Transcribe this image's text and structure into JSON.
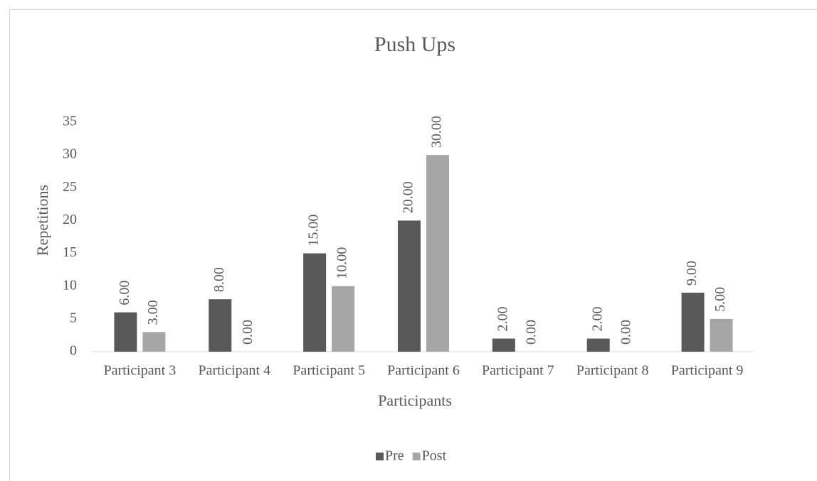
{
  "chart_data": {
    "type": "bar",
    "title": "Push Ups",
    "x_label": "Participants",
    "y_label": "Repetitions",
    "categories": [
      "Participant 3",
      "Participant 4",
      "Participant 5",
      "Participant 6",
      "Participant 7",
      "Participant 8",
      "Participant 9"
    ],
    "series": [
      {
        "name": "Pre",
        "color": "#595959",
        "values": [
          6,
          8,
          15,
          20,
          2,
          2,
          9
        ],
        "value_labels": [
          "6.00",
          "8.00",
          "15.00",
          "20.00",
          "2.00",
          "2.00",
          "9.00"
        ]
      },
      {
        "name": "Post",
        "color": "#a6a6a6",
        "values": [
          3,
          0,
          10,
          30,
          0,
          0,
          5
        ],
        "value_labels": [
          "3.00",
          "0.00",
          "10.00",
          "30.00",
          "0.00",
          "0.00",
          "5.00"
        ]
      }
    ],
    "ylim": [
      0,
      35
    ],
    "yticks": [
      0,
      5,
      10,
      15,
      20,
      25,
      30,
      35
    ],
    "grid": false,
    "legend": "bottom"
  }
}
